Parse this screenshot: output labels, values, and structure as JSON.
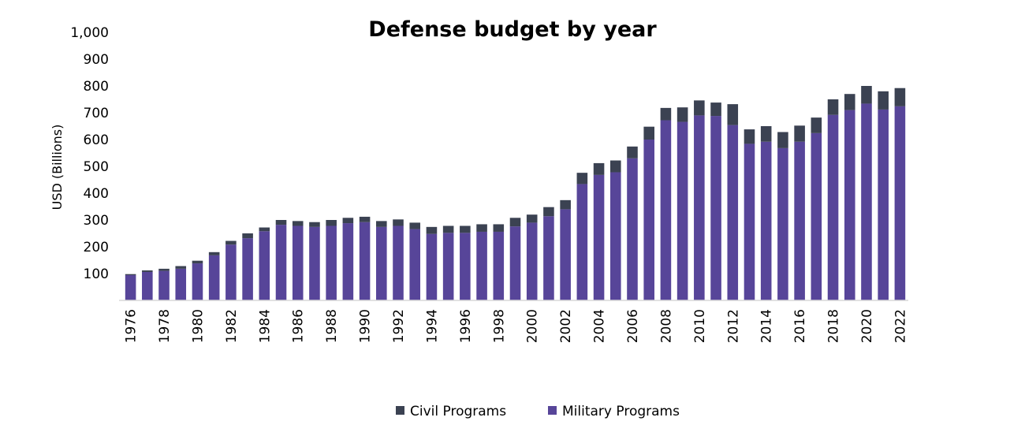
{
  "chart_data": {
    "type": "bar",
    "stacked": true,
    "title": "Defense budget by year",
    "xlabel": "",
    "ylabel": "USD (Billions)",
    "ylim": [
      0,
      1000
    ],
    "yticks": [
      "100",
      "200",
      "300",
      "400",
      "500",
      "600",
      "700",
      "800",
      "900",
      "1,000"
    ],
    "xtick_labels": [
      "1976",
      "1978",
      "1980",
      "1982",
      "1984",
      "1986",
      "1988",
      "1990",
      "1992",
      "1994",
      "1996",
      "1998",
      "2000",
      "2002",
      "2004",
      "2006",
      "2008",
      "2010",
      "2012",
      "2014",
      "2016",
      "2018",
      "2020",
      "2022"
    ],
    "grid": false,
    "legend_position": "bottom",
    "categories": [
      1976,
      1977,
      1978,
      1979,
      1980,
      1981,
      1982,
      1983,
      1984,
      1985,
      1986,
      1987,
      1988,
      1989,
      1990,
      1991,
      1992,
      1993,
      1994,
      1995,
      1996,
      1997,
      1998,
      1999,
      2000,
      2001,
      2002,
      2003,
      2004,
      2005,
      2006,
      2007,
      2008,
      2009,
      2010,
      2011,
      2012,
      2013,
      2014,
      2015,
      2016,
      2017,
      2018,
      2019,
      2020,
      2021,
      2022
    ],
    "series": [
      {
        "name": "Military Programs",
        "color": "#574599",
        "values": [
          94,
          106,
          110,
          118,
          138,
          168,
          208,
          232,
          258,
          282,
          278,
          274,
          278,
          288,
          292,
          274,
          278,
          266,
          248,
          252,
          252,
          256,
          256,
          276,
          290,
          314,
          340,
          434,
          468,
          478,
          530,
          600,
          672,
          666,
          690,
          688,
          654,
          584,
          592,
          568,
          592,
          624,
          692,
          710,
          734,
          712,
          724
        ]
      },
      {
        "name": "Civil Programs",
        "color": "#3b4252",
        "values": [
          4,
          6,
          8,
          10,
          10,
          12,
          14,
          18,
          14,
          18,
          18,
          18,
          22,
          20,
          20,
          22,
          24,
          24,
          26,
          26,
          26,
          28,
          28,
          32,
          30,
          34,
          34,
          42,
          44,
          44,
          44,
          48,
          46,
          54,
          56,
          50,
          78,
          54,
          58,
          60,
          60,
          58,
          58,
          60,
          66,
          68,
          68
        ]
      }
    ]
  }
}
